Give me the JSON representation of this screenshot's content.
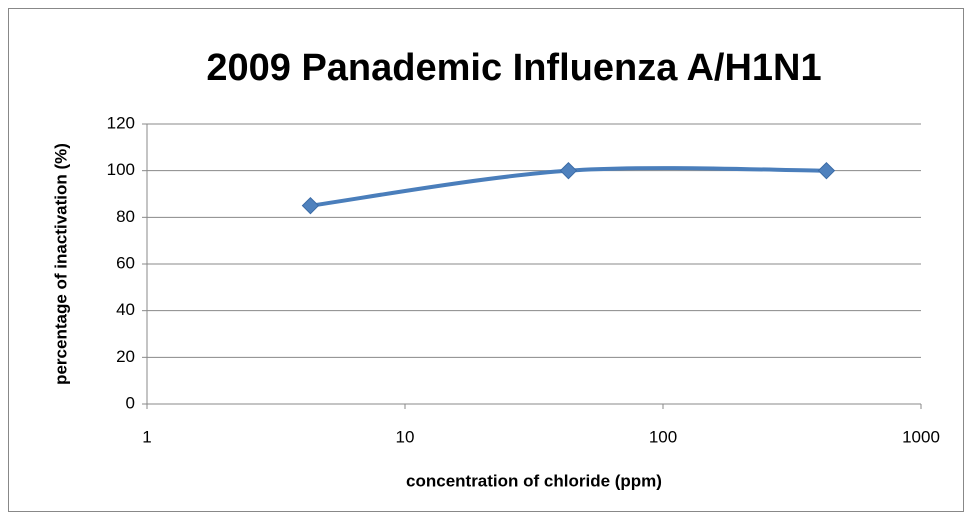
{
  "chart_data": {
    "type": "line",
    "title": "2009 Panademic Influenza A/H1N1",
    "x_label": "concentration of chloride (ppm)",
    "y_label": "percentage of inactivation (%)",
    "x": [
      4.3,
      43,
      430
    ],
    "series": [
      {
        "name": "percentage of inactivation",
        "color": "#4a7ebb",
        "values": [
          85,
          100,
          100
        ]
      }
    ],
    "xscale": "log",
    "xlim": [
      1,
      1000
    ],
    "xticks": [
      1,
      10,
      100,
      1000
    ],
    "ylim": [
      0,
      120
    ],
    "yticks": [
      0,
      20,
      40,
      60,
      80,
      100,
      120
    ],
    "grid": true,
    "smooth": true
  }
}
